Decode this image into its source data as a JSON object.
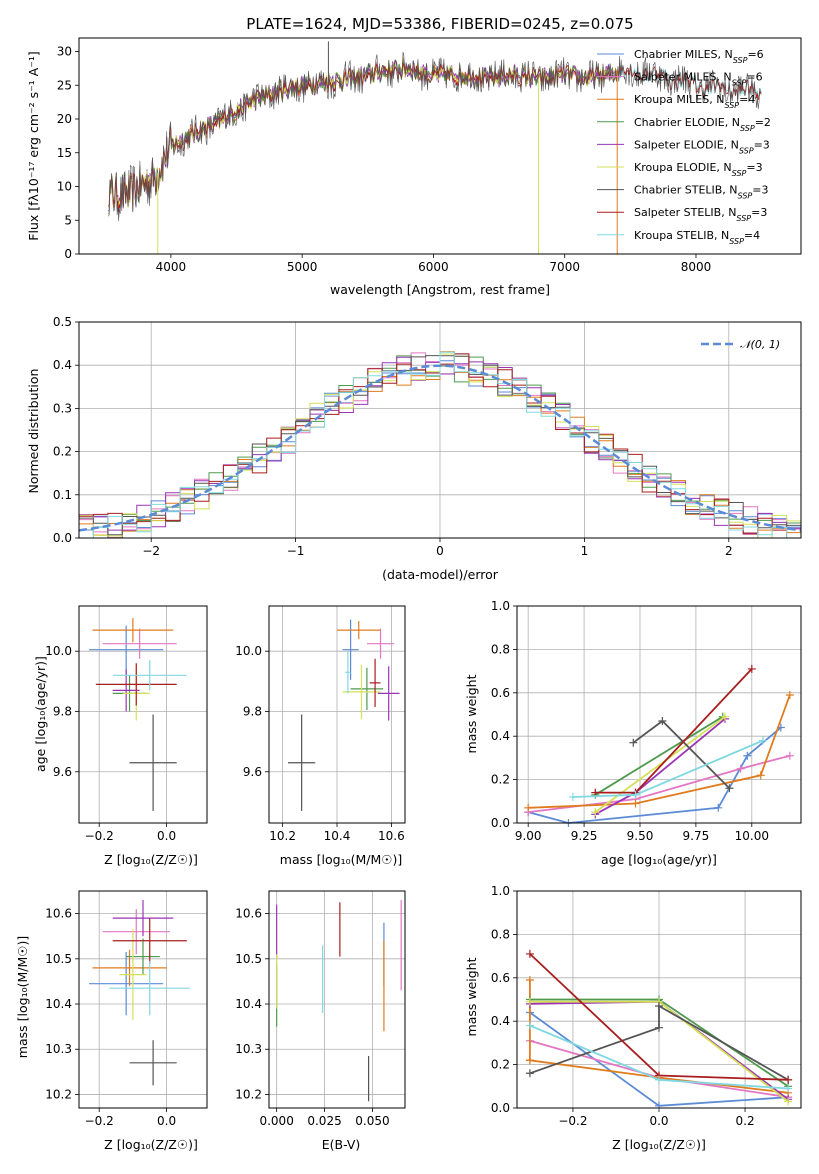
{
  "colors": {
    "Chabrier MILES": "#5b8bd6",
    "Salpeter MILES": "#e377c2",
    "Kroupa MILES": "#e07b1e",
    "Chabrier ELODIE": "#4f9a4f",
    "Salpeter ELODIE": "#9b35b5",
    "Kroupa ELODIE": "#d4e157",
    "Chabrier STELIB": "#555555",
    "Salpeter STELIB": "#a81e1e",
    "Kroupa STELIB": "#80d8e0",
    "gaussian": "#5b8bd6"
  },
  "chart_data": [
    {
      "id": "spectrum",
      "type": "line",
      "title": "PLATE=1624, MJD=53386, FIBERID=0245, z=0.075",
      "xlabel": "wavelength [Angstrom, rest frame]",
      "ylabel": "Flux [fλ10⁻¹⁷ erg cm⁻² s⁻¹ A⁻¹]",
      "xlim": [
        3300,
        8800
      ],
      "ylim": [
        0,
        32
      ],
      "xticks": [
        "4000",
        "5000",
        "6000",
        "7000",
        "8000"
      ],
      "yticks": [
        "0",
        "5",
        "10",
        "15",
        "20",
        "25",
        "30"
      ],
      "legend_position": "right",
      "legend": [
        {
          "name": "Chabrier MILES",
          "suffix": "=6"
        },
        {
          "name": "Salpeter MILES",
          "suffix": "=6"
        },
        {
          "name": "Kroupa MILES",
          "suffix": "=4"
        },
        {
          "name": "Chabrier ELODIE",
          "suffix": "=2"
        },
        {
          "name": "Salpeter ELODIE",
          "suffix": "=3"
        },
        {
          "name": "Kroupa ELODIE",
          "suffix": "=3"
        },
        {
          "name": "Chabrier STELIB",
          "suffix": "=3"
        },
        {
          "name": "Salpeter STELIB",
          "suffix": "=3"
        },
        {
          "name": "Kroupa STELIB",
          "suffix": "=4"
        }
      ],
      "continuum": [
        [
          3500,
          9
        ],
        [
          3700,
          9
        ],
        [
          3900,
          12
        ],
        [
          4000,
          16
        ],
        [
          4200,
          18
        ],
        [
          4400,
          20
        ],
        [
          4600,
          22.5
        ],
        [
          4800,
          24
        ],
        [
          5000,
          25
        ],
        [
          5200,
          25.5
        ],
        [
          5400,
          26
        ],
        [
          5600,
          27
        ],
        [
          5800,
          27.5
        ],
        [
          6000,
          26.5
        ],
        [
          6200,
          26.5
        ],
        [
          6400,
          26
        ],
        [
          6600,
          26.5
        ],
        [
          6800,
          26
        ],
        [
          7000,
          26.5
        ],
        [
          7200,
          26
        ],
        [
          7400,
          27
        ],
        [
          7600,
          27
        ],
        [
          7800,
          26
        ],
        [
          8000,
          25
        ],
        [
          8200,
          24.5
        ],
        [
          8500,
          24
        ]
      ]
    },
    {
      "id": "residuals",
      "type": "line",
      "xlabel": "(data-model)/error",
      "ylabel": "Normed distribution",
      "xlim": [
        -2.5,
        2.5
      ],
      "ylim": [
        0,
        0.5
      ],
      "xticks": [
        "−2",
        "−1",
        "0",
        "1",
        "2"
      ],
      "yticks": [
        "0.0",
        "0.1",
        "0.2",
        "0.3",
        "0.4",
        "0.5"
      ],
      "legend": [
        {
          "name": "𝒩(0, 1)"
        }
      ],
      "legend_position": "top-right"
    },
    {
      "id": "age_vs_Z",
      "type": "scatter",
      "xlabel": "Z [log₁₀(Z/Z☉)]",
      "ylabel": "age  [log₁₀(age/yr)]",
      "xlim": [
        -0.26,
        0.12
      ],
      "ylim": [
        9.43,
        10.15
      ],
      "xticks": [
        "−0.2",
        "0.0"
      ],
      "yticks": [
        "9.6",
        "9.8",
        "10.0"
      ],
      "points": [
        {
          "model": "Chabrier MILES",
          "x": -0.12,
          "y": 10.005,
          "xerr": 0.11,
          "yerr": 0.08
        },
        {
          "model": "Salpeter MILES",
          "x": -0.08,
          "y": 10.025,
          "xerr": 0.11,
          "yerr": 0.05
        },
        {
          "model": "Kroupa MILES",
          "x": -0.1,
          "y": 10.07,
          "xerr": 0.12,
          "yerr": 0.04
        },
        {
          "model": "Chabrier ELODIE",
          "x": -0.11,
          "y": 9.86,
          "xerr": 0.05,
          "yerr": 0.06
        },
        {
          "model": "Salpeter ELODIE",
          "x": -0.12,
          "y": 9.87,
          "xerr": 0.04,
          "yerr": 0.07
        },
        {
          "model": "Kroupa ELODIE",
          "x": -0.09,
          "y": 9.86,
          "xerr": 0.04,
          "yerr": 0.09
        },
        {
          "model": "Chabrier STELIB",
          "x": -0.04,
          "y": 9.63,
          "xerr": 0.07,
          "yerr": 0.16
        },
        {
          "model": "Salpeter STELIB",
          "x": -0.09,
          "y": 9.89,
          "xerr": 0.12,
          "yerr": 0.07
        },
        {
          "model": "Kroupa STELIB",
          "x": -0.05,
          "y": 9.92,
          "xerr": 0.11,
          "yerr": 0.05
        }
      ]
    },
    {
      "id": "age_vs_mass",
      "type": "scatter",
      "xlabel": "mass [log₁₀(M/M☉)]",
      "xlim": [
        10.15,
        10.65
      ],
      "ylim": [
        9.43,
        10.15
      ],
      "xticks": [
        "10.2",
        "10.4",
        "10.6"
      ],
      "yticks": [
        "9.6",
        "9.8",
        "10.0"
      ],
      "points": [
        {
          "model": "Chabrier MILES",
          "x": 10.45,
          "y": 10.005,
          "xerr": 0.03,
          "yerr": 0.1
        },
        {
          "model": "Salpeter MILES",
          "x": 10.56,
          "y": 10.025,
          "xerr": 0.05,
          "yerr": 0.05
        },
        {
          "model": "Kroupa MILES",
          "x": 10.48,
          "y": 10.07,
          "xerr": 0.08,
          "yerr": 0.03
        },
        {
          "model": "Chabrier ELODIE",
          "x": 10.51,
          "y": 9.875,
          "xerr": 0.06,
          "yerr": 0.07
        },
        {
          "model": "Salpeter ELODIE",
          "x": 10.59,
          "y": 9.86,
          "xerr": 0.04,
          "yerr": 0.09
        },
        {
          "model": "Kroupa ELODIE",
          "x": 10.49,
          "y": 9.865,
          "xerr": 0.07,
          "yerr": 0.09
        },
        {
          "model": "Chabrier STELIB",
          "x": 10.27,
          "y": 9.63,
          "xerr": 0.05,
          "yerr": 0.16
        },
        {
          "model": "Salpeter STELIB",
          "x": 10.54,
          "y": 9.895,
          "xerr": 0.02,
          "yerr": 0.08
        },
        {
          "model": "Kroupa STELIB",
          "x": 10.44,
          "y": 9.93,
          "xerr": 0.01,
          "yerr": 0.07
        }
      ]
    },
    {
      "id": "weight_vs_age",
      "type": "line",
      "xlabel": "age  [log₁₀(age/yr)]",
      "ylabel": "mass weight",
      "xlim": [
        8.95,
        10.22
      ],
      "ylim": [
        0,
        1
      ],
      "xticks": [
        "9.00",
        "9.25",
        "9.50",
        "9.75",
        "10.00"
      ],
      "yticks": [
        "0.0",
        "0.2",
        "0.4",
        "0.6",
        "0.8",
        "1.0"
      ],
      "series": [
        {
          "model": "Chabrier MILES",
          "x": [
            9.0,
            9.18,
            9.85,
            9.98,
            10.13
          ],
          "y": [
            0.05,
            0.0,
            0.07,
            0.31,
            0.44
          ]
        },
        {
          "model": "Salpeter MILES",
          "x": [
            9.0,
            9.48,
            9.95,
            10.17
          ],
          "y": [
            0.05,
            0.11,
            0.25,
            0.31
          ]
        },
        {
          "model": "Kroupa MILES",
          "x": [
            9.0,
            9.48,
            10.04,
            10.17
          ],
          "y": [
            0.07,
            0.09,
            0.22,
            0.59
          ]
        },
        {
          "model": "Chabrier ELODIE",
          "x": [
            9.3,
            9.87
          ],
          "y": [
            0.13,
            0.49
          ]
        },
        {
          "model": "Salpeter ELODIE",
          "x": [
            9.3,
            9.48,
            9.88
          ],
          "y": [
            0.04,
            0.14,
            0.48
          ]
        },
        {
          "model": "Kroupa ELODIE",
          "x": [
            9.3,
            9.88
          ],
          "y": [
            0.05,
            0.49
          ]
        },
        {
          "model": "Chabrier STELIB",
          "x": [
            9.47,
            9.6,
            9.9
          ],
          "y": [
            0.37,
            0.47,
            0.16
          ]
        },
        {
          "model": "Salpeter STELIB",
          "x": [
            9.3,
            9.48,
            10.0
          ],
          "y": [
            0.14,
            0.14,
            0.71
          ]
        },
        {
          "model": "Kroupa STELIB",
          "x": [
            9.2,
            9.48,
            10.05
          ],
          "y": [
            0.12,
            0.13,
            0.38
          ]
        }
      ]
    },
    {
      "id": "mass_vs_Z",
      "type": "scatter",
      "xlabel": "Z [log₁₀(Z/Z☉)]",
      "ylabel": "mass [log₁₀(M/M☉)]",
      "xlim": [
        -0.26,
        0.12
      ],
      "ylim": [
        10.17,
        10.65
      ],
      "xticks": [
        "−0.2",
        "0.0"
      ],
      "yticks": [
        "10.2",
        "10.3",
        "10.4",
        "10.5",
        "10.6"
      ],
      "points": [
        {
          "model": "Chabrier MILES",
          "x": -0.12,
          "y": 10.445,
          "xerr": 0.11,
          "yerr": 0.07
        },
        {
          "model": "Salpeter MILES",
          "x": -0.09,
          "y": 10.56,
          "xerr": 0.1,
          "yerr": 0.05
        },
        {
          "model": "Kroupa MILES",
          "x": -0.11,
          "y": 10.48,
          "xerr": 0.11,
          "yerr": 0.04
        },
        {
          "model": "Chabrier ELODIE",
          "x": -0.07,
          "y": 10.505,
          "xerr": 0.05,
          "yerr": 0.04
        },
        {
          "model": "Salpeter ELODIE",
          "x": -0.07,
          "y": 10.59,
          "xerr": 0.09,
          "yerr": 0.04
        },
        {
          "model": "Kroupa ELODIE",
          "x": -0.1,
          "y": 10.465,
          "xerr": 0.04,
          "yerr": 0.1
        },
        {
          "model": "Chabrier STELIB",
          "x": -0.04,
          "y": 10.27,
          "xerr": 0.07,
          "yerr": 0.05
        },
        {
          "model": "Salpeter STELIB",
          "x": -0.05,
          "y": 10.54,
          "xerr": 0.11,
          "yerr": 0.05
        },
        {
          "model": "Kroupa STELIB",
          "x": -0.05,
          "y": 10.435,
          "xerr": 0.12,
          "yerr": 0.06
        }
      ]
    },
    {
      "id": "mass_vs_ebv",
      "type": "scatter",
      "xlabel": "E(B-V)",
      "xlim": [
        -0.004,
        0.067
      ],
      "ylim": [
        10.17,
        10.65
      ],
      "xticks": [
        "0.000",
        "0.025",
        "0.050"
      ],
      "yticks": [
        "10.2",
        "10.3",
        "10.4",
        "10.5",
        "10.6"
      ],
      "points": [
        {
          "model": "Chabrier MILES",
          "x": 0.056,
          "y": 10.51,
          "yerr": 0.07
        },
        {
          "model": "Salpeter MILES",
          "x": 0.065,
          "y": 10.53,
          "yerr": 0.1
        },
        {
          "model": "Kroupa MILES",
          "x": 0.056,
          "y": 10.44,
          "yerr": 0.1
        },
        {
          "model": "Chabrier ELODIE",
          "x": 0.0,
          "y": 10.42,
          "yerr": 0.07
        },
        {
          "model": "Salpeter ELODIE",
          "x": 0.0,
          "y": 10.56,
          "yerr": 0.06
        },
        {
          "model": "Kroupa ELODIE",
          "x": 0.0,
          "y": 10.45,
          "yerr": 0.06
        },
        {
          "model": "Chabrier STELIB",
          "x": 0.048,
          "y": 10.235,
          "yerr": 0.05
        },
        {
          "model": "Salpeter STELIB",
          "x": 0.033,
          "y": 10.565,
          "yerr": 0.06
        },
        {
          "model": "Kroupa STELIB",
          "x": 0.024,
          "y": 10.455,
          "yerr": 0.075
        }
      ]
    },
    {
      "id": "weight_vs_Z",
      "type": "line",
      "xlabel": "Z [log₁₀(Z/Z☉)]",
      "ylabel": "mass weight",
      "xlim": [
        -0.33,
        0.33
      ],
      "ylim": [
        0,
        1
      ],
      "xticks": [
        "−0.2",
        "0.0",
        "0.2"
      ],
      "yticks": [
        "0.0",
        "0.2",
        "0.4",
        "0.6",
        "0.8",
        "1.0"
      ],
      "series": [
        {
          "model": "Chabrier MILES",
          "x": [
            -0.3,
            0.0,
            0.3
          ],
          "y": [
            0.44,
            0.01,
            0.05
          ]
        },
        {
          "model": "Salpeter MILES",
          "x": [
            -0.3,
            0.0,
            0.3
          ],
          "y": [
            0.31,
            0.14,
            0.05
          ]
        },
        {
          "model": "Kroupa MILES",
          "x": [
            -0.3,
            0.0,
            0.3
          ],
          "y": [
            0.22,
            0.14,
            0.07
          ]
        },
        {
          "model": "Kroupa MILES",
          "x": [
            -0.3,
            -0.3
          ],
          "y": [
            0.22,
            0.59
          ]
        },
        {
          "model": "Chabrier ELODIE",
          "x": [
            -0.3,
            0.0,
            0.3
          ],
          "y": [
            0.5,
            0.5,
            0.1
          ]
        },
        {
          "model": "Salpeter ELODIE",
          "x": [
            -0.3,
            0.0,
            0.3
          ],
          "y": [
            0.48,
            0.49,
            0.04
          ]
        },
        {
          "model": "Kroupa ELODIE",
          "x": [
            -0.3,
            0.0,
            0.3
          ],
          "y": [
            0.49,
            0.49,
            0.03
          ]
        },
        {
          "model": "Chabrier STELIB",
          "x": [
            -0.3,
            0.0,
            0.0,
            0.3
          ],
          "y": [
            0.16,
            0.37,
            0.47,
            0.13
          ]
        },
        {
          "model": "Salpeter STELIB",
          "x": [
            -0.3,
            0.0,
            0.3
          ],
          "y": [
            0.71,
            0.15,
            0.13
          ]
        },
        {
          "model": "Kroupa STELIB",
          "x": [
            -0.3,
            0.0,
            0.3
          ],
          "y": [
            0.38,
            0.13,
            0.09
          ]
        }
      ]
    }
  ]
}
